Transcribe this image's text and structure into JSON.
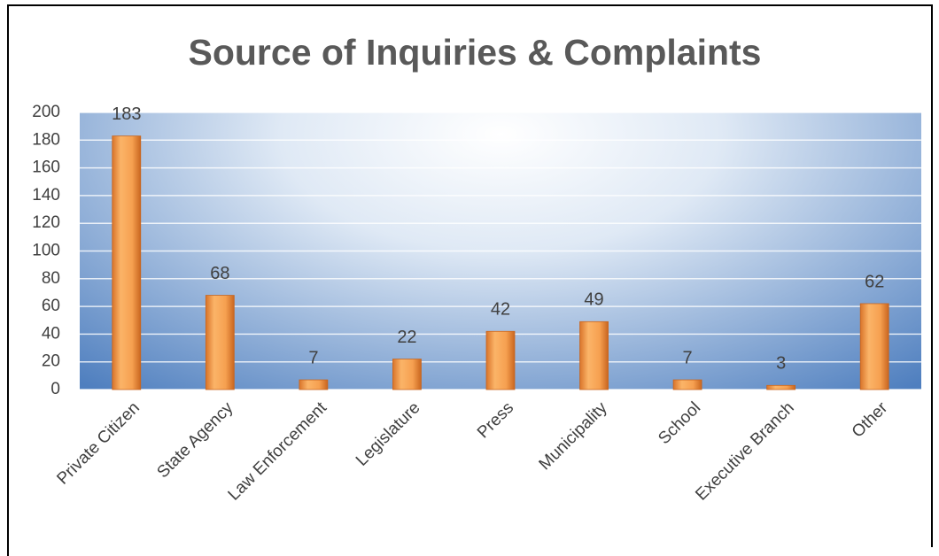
{
  "chart_data": {
    "type": "bar",
    "title": "Source of Inquiries & Complaints",
    "categories": [
      "Private Citizen",
      "State Agency",
      "Law Enforcement",
      "Legislature",
      "Press",
      "Municipality",
      "School",
      "Executive Branch",
      "Other"
    ],
    "values": [
      183,
      68,
      7,
      22,
      42,
      49,
      7,
      3,
      62
    ],
    "color": "#f59a45",
    "ylim": [
      0,
      200
    ],
    "yticks": [
      0,
      20,
      40,
      60,
      80,
      100,
      120,
      140,
      160,
      180,
      200
    ],
    "grid": true
  }
}
